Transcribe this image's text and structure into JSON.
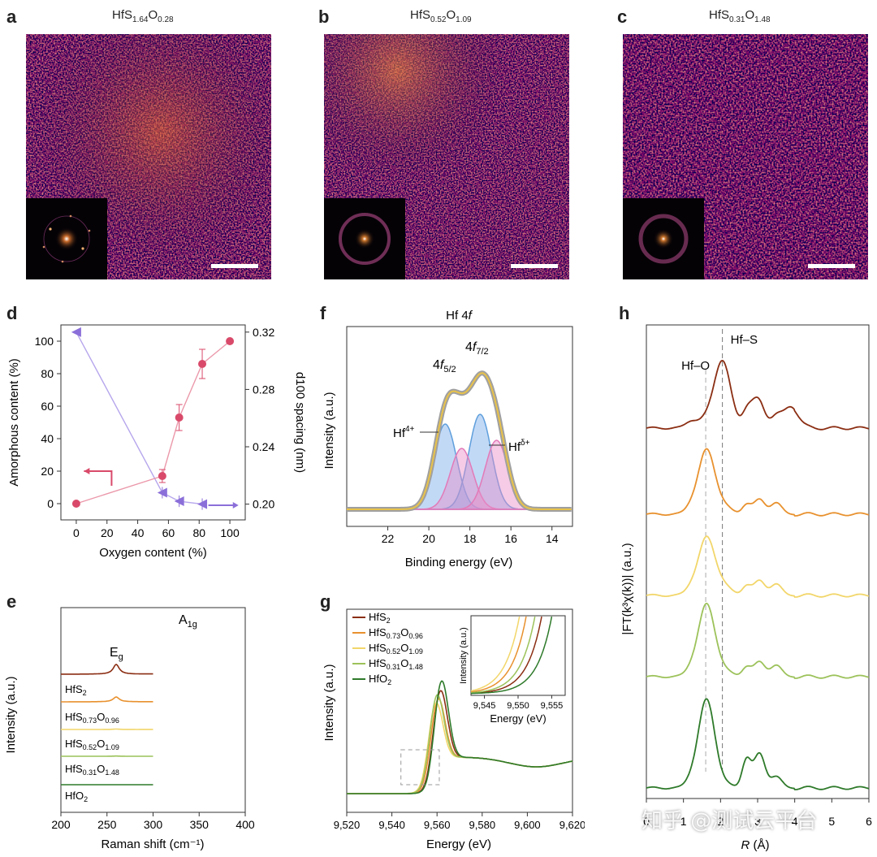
{
  "panels": {
    "a": {
      "label": "a",
      "formula": "HfS",
      "sub1": "1.64",
      "el2": "O",
      "sub2": "0.28"
    },
    "b": {
      "label": "b",
      "formula": "HfS",
      "sub1": "0.52",
      "el2": "O",
      "sub2": "1.09"
    },
    "c": {
      "label": "c",
      "formula": "HfS",
      "sub1": "0.31",
      "el2": "O",
      "sub2": "1.48"
    },
    "d": {
      "label": "d"
    },
    "e": {
      "label": "e"
    },
    "f": {
      "label": "f",
      "title": "Hf 4f"
    },
    "g": {
      "label": "g"
    },
    "h": {
      "label": "h"
    }
  },
  "chart_data": [
    {
      "id": "d",
      "type": "scatter",
      "xlabel": "Oxygen content (%)",
      "ylabel": "Amorphous content (%)",
      "y2label": "d100 spacing (nm)",
      "xticks": [
        "0",
        "20",
        "40",
        "60",
        "80",
        "100"
      ],
      "yticks": [
        "0",
        "20",
        "40",
        "60",
        "80",
        "100"
      ],
      "y2ticks": [
        "0.20",
        "0.24",
        "0.28",
        "0.32"
      ],
      "xlim": [
        -10,
        110
      ],
      "ylim": [
        -10,
        110
      ],
      "y2lim": [
        0.189,
        0.325
      ],
      "series": [
        {
          "name": "Amorphous content",
          "color": "#d94a6a",
          "x": [
            0,
            56,
            67,
            82,
            100
          ],
          "y": [
            0,
            17,
            53,
            86,
            100
          ],
          "err": [
            0,
            4,
            8,
            9,
            0
          ]
        },
        {
          "name": "d100 spacing",
          "color": "#8b6fd9",
          "x": [
            0,
            56,
            67,
            82
          ],
          "y": [
            0.32,
            0.208,
            0.202,
            0.2
          ],
          "err": [
            0,
            0.004,
            0.004,
            0.004
          ]
        }
      ]
    },
    {
      "id": "e",
      "type": "line",
      "xlabel": "Raman shift (cm⁻¹)",
      "ylabel": "Intensity (a.u.)",
      "xticks": [
        "200",
        "250",
        "300",
        "350",
        "400"
      ],
      "xlim": [
        200,
        400
      ],
      "peaks": [
        "E_g",
        "A_1g"
      ],
      "series": [
        {
          "name": "HfS2",
          "color": "#8b2e13"
        },
        {
          "name": "HfS0.73O0.96",
          "color": "#e8912e"
        },
        {
          "name": "HfS0.52O1.09",
          "color": "#f2d66a"
        },
        {
          "name": "HfS0.31O1.48",
          "color": "#9cc25a"
        },
        {
          "name": "HfO2",
          "color": "#2e7a2a"
        }
      ]
    },
    {
      "id": "f",
      "type": "line",
      "xlabel": "Binding energy (eV)",
      "ylabel": "Intensity (a.u.)",
      "xticks": [
        "22",
        "20",
        "18",
        "16",
        "14"
      ],
      "xlim": [
        24,
        13
      ],
      "annotations": [
        "4f5/2",
        "4f7/2",
        "Hf4+",
        "Hfδ+"
      ]
    },
    {
      "id": "g",
      "type": "line",
      "xlabel": "Energy (eV)",
      "ylabel": "Intensity (a.u.)",
      "xticks": [
        "9,520",
        "9,540",
        "9,560",
        "9,580",
        "9,600",
        "9,620"
      ],
      "xlim": [
        9520,
        9620
      ],
      "inset": {
        "xlabel": "Energy (eV)",
        "ylabel": "Intensity (a.u.)",
        "xticks": [
          "9,545",
          "9,550",
          "9,555"
        ]
      },
      "legend": [
        {
          "name": "HfS2",
          "color": "#8b2e13"
        },
        {
          "name": "HfS0.73O0.96",
          "color": "#e8912e"
        },
        {
          "name": "HfS0.52O1.09",
          "color": "#f2d66a"
        },
        {
          "name": "HfS0.31O1.48",
          "color": "#9cc25a"
        },
        {
          "name": "HfO2",
          "color": "#2e7a2a"
        }
      ]
    },
    {
      "id": "h",
      "type": "line",
      "xlabel": "R (Å)",
      "ylabel": "|FT(k³χ(k))| (a.u.)",
      "xticks": [
        "0",
        "1",
        "2",
        "3",
        "4",
        "5",
        "6"
      ],
      "xlim": [
        0,
        6
      ],
      "markers": [
        {
          "name": "Hf–O",
          "x": 1.6
        },
        {
          "name": "Hf–S",
          "x": 2.05
        }
      ]
    }
  ],
  "watermark": "知乎 @测试云平台"
}
